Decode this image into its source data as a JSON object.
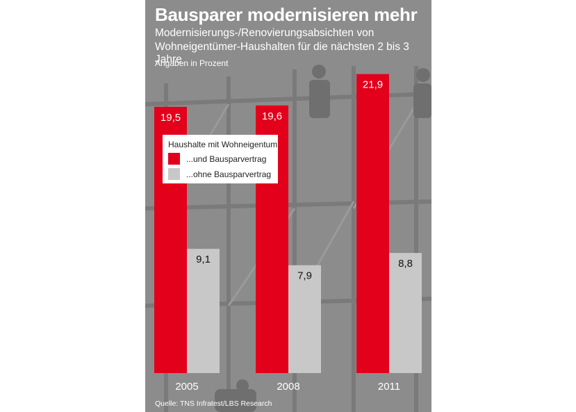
{
  "header": {
    "title": "Bausparer modernisieren mehr",
    "subtitle_line1": "Modernisierungs-/Renovierungsabsichten von",
    "subtitle_line2": "Wohneigentümer-Haushalten für die nächsten 2 bis 3 Jahre",
    "unit_note": "Angaben in Prozent"
  },
  "legend": {
    "title": "Haushalte mit Wohneigentum",
    "items": [
      {
        "label": "...und Bausparvertrag",
        "color": "#e3001b"
      },
      {
        "label": "...ohne Bausparvertrag",
        "color": "#c8c8c8"
      }
    ]
  },
  "source": "Quelle: TNS Infratest/LBS Research",
  "chart_data": {
    "type": "bar",
    "title": "Bausparer modernisieren mehr",
    "subtitle": "Modernisierungs-/Renovierungsabsichten von Wohneigentümer-Haushalten für die nächsten 2 bis 3 Jahre",
    "unit": "Angaben in Prozent",
    "categories": [
      "2005",
      "2008",
      "2011"
    ],
    "value_labels": [
      [
        "19,5",
        "19,6",
        "21,9"
      ],
      [
        "9,1",
        "7,9",
        "8,8"
      ]
    ],
    "series": [
      {
        "name": "...und Bausparvertrag",
        "values": [
          19.5,
          19.6,
          21.9
        ],
        "color": "#e3001b"
      },
      {
        "name": "...ohne Bausparvertrag",
        "values": [
          9.1,
          7.9,
          8.8
        ],
        "color": "#c8c8c8"
      }
    ],
    "ylim": [
      0,
      23
    ],
    "grid": false,
    "legend_position": "top-left"
  }
}
